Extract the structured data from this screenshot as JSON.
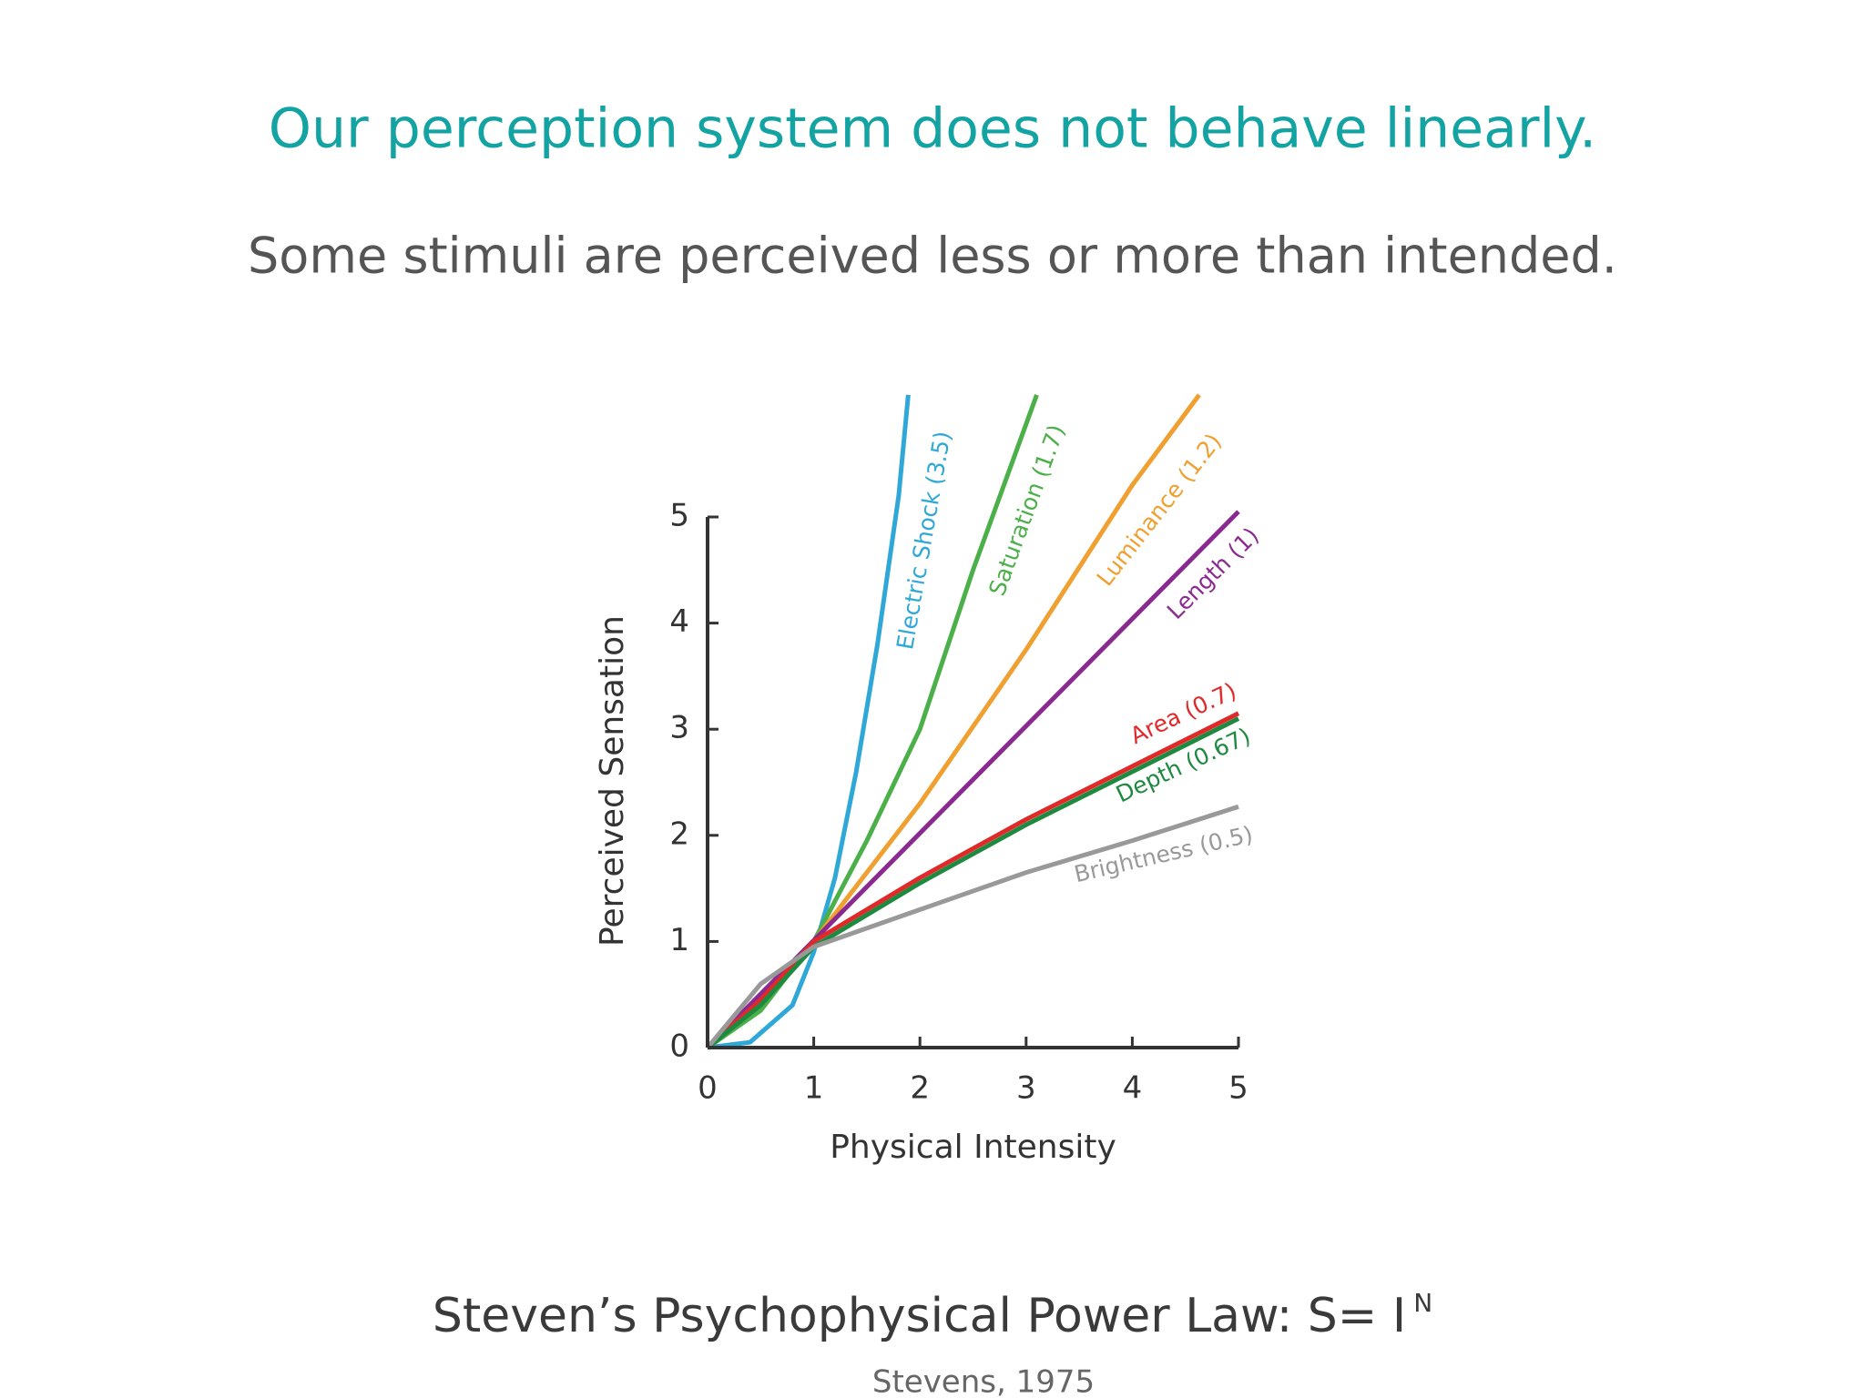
{
  "title": "Our perception system does not behave linearly.",
  "subtitle": "Some stimuli are perceived less or more than intended.",
  "chart_data": {
    "type": "line",
    "xlabel": "Physical Intensity",
    "ylabel": "Perceived Sensation",
    "xlim": [
      0,
      5
    ],
    "ylim": [
      0,
      5
    ],
    "xticks": [
      0,
      1,
      2,
      3,
      4,
      5
    ],
    "yticks": [
      0,
      1,
      2,
      3,
      4,
      5
    ],
    "series": [
      {
        "name": "Electric Shock (3.5)",
        "color": "#2fa8d8",
        "x": [
          0,
          0.4,
          0.8,
          1,
          1.2,
          1.4,
          1.6,
          1.8,
          1.89
        ],
        "values": [
          0,
          0.05,
          0.4,
          0.9,
          1.6,
          2.6,
          3.8,
          5.2,
          6.15
        ]
      },
      {
        "name": "Saturation (1.7)",
        "color": "#4cb04a",
        "x": [
          0,
          0.5,
          1,
          1.5,
          2,
          2.5,
          3.1
        ],
        "values": [
          0,
          0.35,
          1,
          1.95,
          3.0,
          4.5,
          6.15
        ]
      },
      {
        "name": "Luminance (1.2)",
        "color": "#f0a030",
        "x": [
          0,
          0.5,
          1,
          2,
          3,
          4,
          4.63
        ],
        "values": [
          0,
          0.42,
          1,
          2.3,
          3.75,
          5.3,
          6.15
        ]
      },
      {
        "name": "Length (1)",
        "color": "#8a2a90",
        "x": [
          0,
          5
        ],
        "values": [
          0,
          5.05
        ]
      },
      {
        "name": "Area (0.7)",
        "color": "#e02a2a",
        "x": [
          0,
          0.5,
          1,
          2,
          3,
          4,
          5
        ],
        "values": [
          0,
          0.45,
          1,
          1.6,
          2.15,
          2.65,
          3.15
        ]
      },
      {
        "name": "Depth (0.67)",
        "color": "#1e8a40",
        "x": [
          0,
          0.5,
          1,
          2,
          3,
          4,
          5
        ],
        "values": [
          0,
          0.4,
          0.95,
          1.55,
          2.1,
          2.6,
          3.1
        ]
      },
      {
        "name": "Brightness (0.5)",
        "color": "#999999",
        "x": [
          0,
          0.5,
          1,
          2,
          3,
          4,
          5
        ],
        "values": [
          0,
          0.6,
          0.95,
          1.3,
          1.65,
          1.95,
          2.27
        ]
      }
    ]
  },
  "footer_title": "Steven’s Psychophysical Power Law: S= I",
  "footer_superscript": "N",
  "citation": "Stevens, 1975"
}
